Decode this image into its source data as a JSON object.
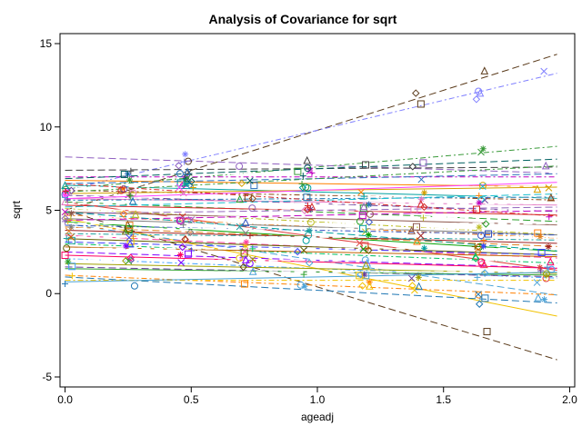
{
  "chart_data": {
    "type": "line",
    "title": "Analysis of Covariance for sqrt",
    "xlabel": "ageadj",
    "ylabel": "sqrt",
    "xlim": [
      -0.02,
      2.02
    ],
    "ylim": [
      -5.6,
      15.6
    ],
    "x_ticks": [
      0.0,
      0.5,
      1.0,
      1.5,
      2.0
    ],
    "x_tick_labels": [
      "0.0",
      "0.5",
      "1.0",
      "1.5",
      "2.0"
    ],
    "y_ticks": [
      -5,
      0,
      5,
      10,
      15
    ],
    "y_tick_labels": [
      "-5",
      "0",
      "5",
      "10",
      "15"
    ],
    "grid": false,
    "legend": "none",
    "x_range_fit": [
      0,
      1.95
    ],
    "series": [
      {
        "intercept": 5.0,
        "slope": 4.8,
        "color": "#5a3a1a",
        "dash": "8,4"
      },
      {
        "intercept": 5.0,
        "slope": -4.6,
        "color": "#5a3a1a",
        "dash": "8,4"
      },
      {
        "intercept": 6.2,
        "slope": 3.6,
        "color": "#8080ff",
        "dash": "6,3,2,3"
      },
      {
        "intercept": 4.5,
        "slope": -3.0,
        "color": "#f2c200",
        "dash": ""
      },
      {
        "intercept": 6.3,
        "slope": 1.3,
        "color": "#3a9a3a",
        "dash": "6,3,2,3"
      },
      {
        "intercept": 5.5,
        "slope": -2.1,
        "color": "#e04040",
        "dash": ""
      },
      {
        "intercept": 4.2,
        "slope": -2.2,
        "color": "#4ba3d8",
        "dash": "8,4"
      },
      {
        "intercept": 8.2,
        "slope": -0.5,
        "color": "#9060c0",
        "dash": "8,4"
      },
      {
        "intercept": 7.4,
        "slope": 0.1,
        "color": "#404040",
        "dash": "8,4"
      },
      {
        "intercept": 7.2,
        "slope": 0.0,
        "color": "#ffffff",
        "dash": "10,4"
      },
      {
        "intercept": 7.0,
        "slope": 0.0,
        "color": "#c000c0",
        "dash": "6,3,2,3"
      },
      {
        "intercept": 6.8,
        "slope": -0.2,
        "color": "#ff8000",
        "dash": ""
      },
      {
        "intercept": 6.6,
        "slope": 0.3,
        "color": "#2c6fbb",
        "dash": "8,4"
      },
      {
        "intercept": 6.5,
        "slope": -0.4,
        "color": "#00a0a0",
        "dash": ""
      },
      {
        "intercept": 6.4,
        "slope": 0.0,
        "color": "#ffffff",
        "dash": "10,4"
      },
      {
        "intercept": 6.2,
        "slope": -0.3,
        "color": "#8b4513",
        "dash": "6,3,2,3"
      },
      {
        "intercept": 6.0,
        "slope": 0.2,
        "color": "#d4a000",
        "dash": ""
      },
      {
        "intercept": 5.9,
        "slope": -0.5,
        "color": "#6a3d9a",
        "dash": "8,4"
      },
      {
        "intercept": 5.8,
        "slope": 0.0,
        "color": "#ffffff",
        "dash": "10,4"
      },
      {
        "intercept": 5.7,
        "slope": -0.2,
        "color": "#e377c2",
        "dash": ""
      },
      {
        "intercept": 5.6,
        "slope": 0.1,
        "color": "#1f77b4",
        "dash": "6,3,2,3"
      },
      {
        "intercept": 5.5,
        "slope": -0.6,
        "color": "#2ca02c",
        "dash": "8,4"
      },
      {
        "intercept": 5.4,
        "slope": 0.0,
        "color": "#ffffff",
        "dash": "10,4"
      },
      {
        "intercept": 5.3,
        "slope": -0.3,
        "color": "#d62728",
        "dash": ""
      },
      {
        "intercept": 5.2,
        "slope": 0.4,
        "color": "#17becf",
        "dash": "8,4"
      },
      {
        "intercept": 5.1,
        "slope": -0.8,
        "color": "#bcbd22",
        "dash": "6,3,2,3"
      },
      {
        "intercept": 5.0,
        "slope": 0.0,
        "color": "#ffffff",
        "dash": "10,4"
      },
      {
        "intercept": 4.9,
        "slope": -0.4,
        "color": "#8c564b",
        "dash": ""
      },
      {
        "intercept": 4.8,
        "slope": 0.2,
        "color": "#9467bd",
        "dash": "8,4"
      },
      {
        "intercept": 4.7,
        "slope": -0.7,
        "color": "#ff7f0e",
        "dash": "6,3,2,3"
      },
      {
        "intercept": 4.6,
        "slope": 0.0,
        "color": "#ffffff",
        "dash": "10,4"
      },
      {
        "intercept": 4.5,
        "slope": -0.5,
        "color": "#7f7f7f",
        "dash": ""
      },
      {
        "intercept": 4.4,
        "slope": 0.3,
        "color": "#c000c0",
        "dash": "8,4"
      },
      {
        "intercept": 4.3,
        "slope": -0.9,
        "color": "#00a000",
        "dash": ""
      },
      {
        "intercept": 4.2,
        "slope": 0.0,
        "color": "#ffffff",
        "dash": "10,4"
      },
      {
        "intercept": 4.1,
        "slope": -0.3,
        "color": "#3050c0",
        "dash": "6,3,2,3"
      },
      {
        "intercept": 4.0,
        "slope": -0.6,
        "color": "#e08020",
        "dash": "8,4"
      },
      {
        "intercept": 3.9,
        "slope": 0.0,
        "color": "#ffffff",
        "dash": "10,4"
      },
      {
        "intercept": 3.8,
        "slope": -0.4,
        "color": "#a02020",
        "dash": ""
      },
      {
        "intercept": 3.6,
        "slope": -0.2,
        "color": "#20a0a0",
        "dash": "6,3,2,3"
      },
      {
        "intercept": 3.5,
        "slope": -0.7,
        "color": "#ff40a0",
        "dash": "8,4"
      },
      {
        "intercept": 3.4,
        "slope": 0.0,
        "color": "#ffffff",
        "dash": "10,4"
      },
      {
        "intercept": 3.3,
        "slope": -0.5,
        "color": "#606000",
        "dash": ""
      },
      {
        "intercept": 3.1,
        "slope": -0.4,
        "color": "#4040ff",
        "dash": "8,4"
      },
      {
        "intercept": 3.0,
        "slope": -0.6,
        "color": "#00c060",
        "dash": "6,3,2,3"
      },
      {
        "intercept": 2.8,
        "slope": -0.3,
        "color": "#c06000",
        "dash": ""
      },
      {
        "intercept": 2.7,
        "slope": 0.0,
        "color": "#ffffff",
        "dash": "10,4"
      },
      {
        "intercept": 2.5,
        "slope": -0.5,
        "color": "#8000ff",
        "dash": "8,4"
      },
      {
        "intercept": 2.3,
        "slope": -0.4,
        "color": "#ff0060",
        "dash": ""
      },
      {
        "intercept": 2.1,
        "slope": -0.6,
        "color": "#40a0ff",
        "dash": "6,3,2,3"
      },
      {
        "intercept": 2.0,
        "slope": 0.0,
        "color": "#ffffff",
        "dash": "10,4"
      },
      {
        "intercept": 1.8,
        "slope": -0.3,
        "color": "#a0a000",
        "dash": ""
      },
      {
        "intercept": 1.6,
        "slope": -0.3,
        "color": "#6a3d9a",
        "dash": "8,4"
      },
      {
        "intercept": 1.5,
        "slope": -0.2,
        "color": "#2ca02c",
        "dash": ""
      },
      {
        "intercept": 1.3,
        "slope": 0.0,
        "color": "#ffffff",
        "dash": "10,4"
      },
      {
        "intercept": 1.1,
        "slope": -0.6,
        "color": "#ff8000",
        "dash": "6,3,2,3"
      },
      {
        "intercept": 1.0,
        "slope": -0.8,
        "color": "#1f77b4",
        "dash": "8,4"
      },
      {
        "intercept": 0.8,
        "slope": 0.0,
        "color": "#f2c200",
        "dash": "6,3,2,3"
      },
      {
        "intercept": 0.7,
        "slope": 0.3,
        "color": "#4ba3d8",
        "dash": ""
      },
      {
        "intercept": 6.9,
        "slope": 0.6,
        "color": "#006060",
        "dash": "8,4"
      },
      {
        "intercept": 6.1,
        "slope": 0.8,
        "color": "#3a9a3a",
        "dash": "6,3,2,3"
      },
      {
        "intercept": 5.7,
        "slope": 0.5,
        "color": "#ff40ff",
        "dash": ""
      },
      {
        "intercept": 4.9,
        "slope": -1.2,
        "color": "#00a0a0",
        "dash": "8,4"
      },
      {
        "intercept": 6.6,
        "slope": -1.0,
        "color": "#d62728",
        "dash": "6,3,2,3"
      }
    ]
  }
}
